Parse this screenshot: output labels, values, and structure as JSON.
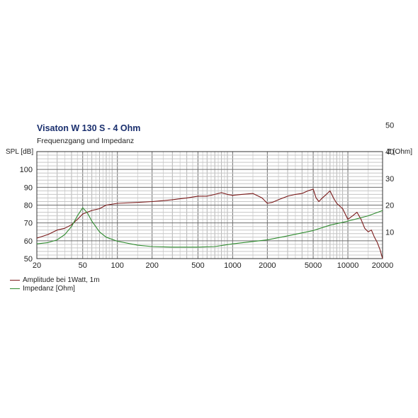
{
  "chart_data": {
    "type": "line",
    "title": "Visaton W 130 S - 4 Ohm",
    "subtitle": "Frequenzgang und Impedanz",
    "ylabel_left": "SPL [dB]",
    "ylabel_right": "Z [Ohm]",
    "x_scale": "log",
    "xlim": [
      20,
      20000
    ],
    "ylim_left": [
      50,
      110
    ],
    "ylim_right": [
      0,
      40
    ],
    "x_ticks": [
      "20",
      "50",
      "100",
      "200",
      "500",
      "1000",
      "2000",
      "5000",
      "10000",
      "20000"
    ],
    "y_left_ticks": [
      "50",
      "60",
      "70",
      "80",
      "90",
      "100"
    ],
    "y_right_ticks": [
      "10",
      "20",
      "30",
      "40",
      "50"
    ],
    "grid": true,
    "legend_position": "bottom-left",
    "series": [
      {
        "name": "Amplitude bei 1Watt, 1m",
        "axis": "left",
        "color": "#7a1a1a",
        "points": [
          [
            20,
            61.5
          ],
          [
            25,
            63.5
          ],
          [
            30,
            66
          ],
          [
            35,
            67
          ],
          [
            40,
            69
          ],
          [
            45,
            72
          ],
          [
            50,
            75
          ],
          [
            60,
            77
          ],
          [
            70,
            78
          ],
          [
            80,
            80
          ],
          [
            100,
            81
          ],
          [
            150,
            81.5
          ],
          [
            200,
            82
          ],
          [
            250,
            82.5
          ],
          [
            300,
            83
          ],
          [
            400,
            84
          ],
          [
            500,
            85
          ],
          [
            600,
            85
          ],
          [
            700,
            86
          ],
          [
            800,
            87
          ],
          [
            900,
            86
          ],
          [
            1000,
            85.5
          ],
          [
            1200,
            86
          ],
          [
            1500,
            86.5
          ],
          [
            1800,
            84
          ],
          [
            2000,
            81
          ],
          [
            2200,
            81.5
          ],
          [
            2500,
            83
          ],
          [
            3000,
            85
          ],
          [
            3500,
            86
          ],
          [
            4000,
            86.5
          ],
          [
            4500,
            88
          ],
          [
            5000,
            89
          ],
          [
            5300,
            84
          ],
          [
            5600,
            82
          ],
          [
            6000,
            84
          ],
          [
            6500,
            86
          ],
          [
            7000,
            88
          ],
          [
            7500,
            84
          ],
          [
            8000,
            81
          ],
          [
            9000,
            78
          ],
          [
            10000,
            72
          ],
          [
            11000,
            74
          ],
          [
            12000,
            76
          ],
          [
            13000,
            72
          ],
          [
            14000,
            67
          ],
          [
            15000,
            65
          ],
          [
            16000,
            66
          ],
          [
            17000,
            62
          ],
          [
            18000,
            59
          ],
          [
            19000,
            55
          ],
          [
            20000,
            50
          ]
        ]
      },
      {
        "name": "Impedanz [Ohm]",
        "axis": "right",
        "color": "#2e8b2e",
        "points": [
          [
            20,
            5.5
          ],
          [
            25,
            6
          ],
          [
            30,
            7
          ],
          [
            35,
            9
          ],
          [
            40,
            12
          ],
          [
            45,
            16
          ],
          [
            50,
            19
          ],
          [
            55,
            17
          ],
          [
            60,
            14
          ],
          [
            70,
            10
          ],
          [
            80,
            8
          ],
          [
            100,
            6.5
          ],
          [
            150,
            5
          ],
          [
            200,
            4.5
          ],
          [
            300,
            4.3
          ],
          [
            500,
            4.3
          ],
          [
            700,
            4.5
          ],
          [
            1000,
            5.5
          ],
          [
            2000,
            7
          ],
          [
            3000,
            8.5
          ],
          [
            5000,
            10.5
          ],
          [
            7000,
            12.5
          ],
          [
            10000,
            14
          ],
          [
            15000,
            16
          ],
          [
            20000,
            18
          ]
        ]
      }
    ]
  }
}
